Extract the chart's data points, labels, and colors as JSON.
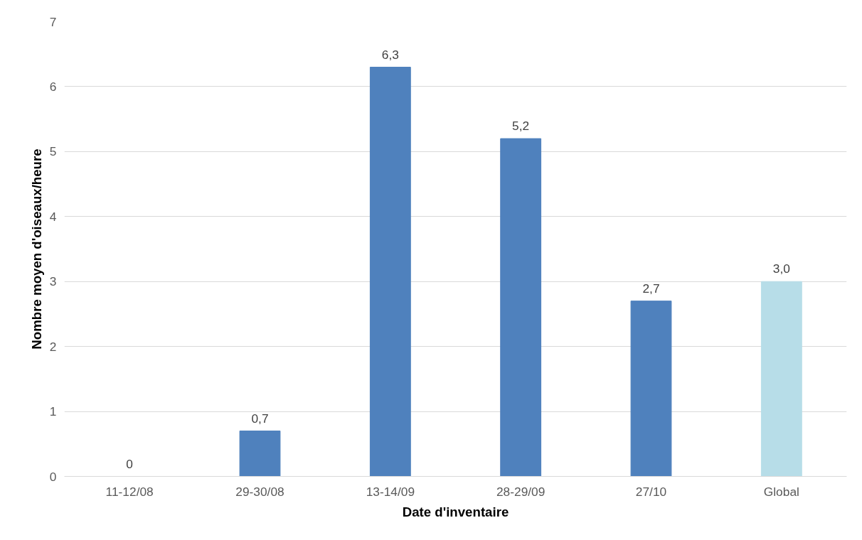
{
  "chart_data": {
    "type": "bar",
    "xlabel": "Date d'inventaire",
    "ylabel": "Nombre moyen d'oiseaux/heure",
    "categories": [
      "11-12/08",
      "29-30/08",
      "13-14/09",
      "28-29/09",
      "27/10",
      "Global"
    ],
    "values": [
      0,
      0.7,
      6.3,
      5.2,
      2.7,
      3.0
    ],
    "value_labels": [
      "0",
      "0,7",
      "6,3",
      "5,2",
      "2,7",
      "3,0"
    ],
    "colors": [
      "#4f81bd",
      "#4f81bd",
      "#4f81bd",
      "#4f81bd",
      "#4f81bd",
      "#b7dde8"
    ],
    "ylim": [
      0,
      7
    ],
    "yticks": [
      0,
      1,
      2,
      3,
      4,
      5,
      6,
      7
    ],
    "grid": "y"
  }
}
